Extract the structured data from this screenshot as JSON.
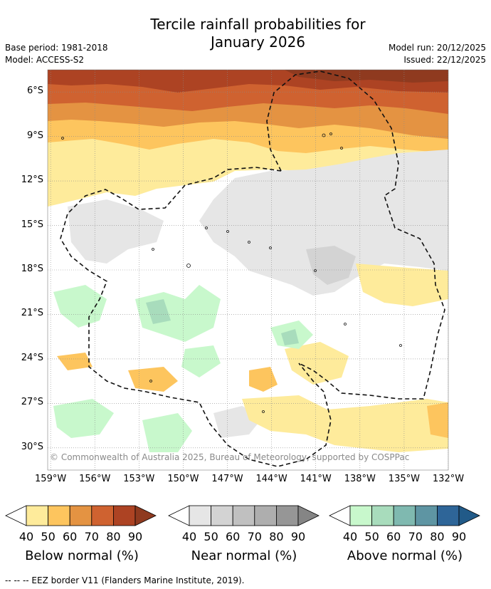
{
  "title": {
    "line1": "Tercile rainfall probabilities for",
    "line2": "January 2026"
  },
  "meta": {
    "base_period": "Base period: 1981-2018",
    "model": "Model: ACCESS-S2",
    "model_run": "Model run: 20/12/2025",
    "issued": "Issued: 22/12/2025"
  },
  "map": {
    "lat_ticks": [
      "6°S",
      "9°S",
      "12°S",
      "15°S",
      "18°S",
      "21°S",
      "24°S",
      "27°S",
      "30°S"
    ],
    "lon_ticks": [
      "159°W",
      "156°W",
      "153°W",
      "150°W",
      "147°W",
      "144°W",
      "141°W",
      "138°W",
      "135°W",
      "132°W"
    ],
    "lat_values": [
      -6,
      -9,
      -12,
      -15,
      -18,
      -21,
      -24,
      -27,
      -30
    ],
    "lon_values": [
      -159,
      -156,
      -153,
      -150,
      -147,
      -144,
      -141,
      -138,
      -135,
      -132
    ],
    "lat_range": [
      -31.5,
      -4.5
    ],
    "lon_range": [
      -159.2,
      -132.0
    ],
    "copyright": "© Commonwealth of Australia 2025, Bureau of Meteorology, supported by COSPPac"
  },
  "legend": {
    "below": {
      "label": "Below normal (%)",
      "ticks": [
        "40",
        "50",
        "60",
        "70",
        "80",
        "90"
      ],
      "colors": [
        "#ffffff",
        "#feeb9b",
        "#fdc55e",
        "#e49342",
        "#cf6230",
        "#ad4323",
        "#8f3a1f"
      ]
    },
    "near": {
      "label": "Near normal (%)",
      "ticks": [
        "40",
        "50",
        "60",
        "70",
        "80",
        "90"
      ],
      "colors": [
        "#ffffff",
        "#e6e6e6",
        "#d3d3d3",
        "#c0c0c0",
        "#aeaeae",
        "#969696",
        "#858585"
      ]
    },
    "above": {
      "label": "Above normal (%)",
      "ticks": [
        "40",
        "50",
        "60",
        "70",
        "80",
        "90"
      ],
      "colors": [
        "#ffffff",
        "#c8f8cc",
        "#a8dcbc",
        "#7fb9b0",
        "#5e95a3",
        "#2e6598",
        "#215a88"
      ]
    }
  },
  "footer": "--  --  -- EEZ border V11 (Flanders Marine Institute, 2019)."
}
